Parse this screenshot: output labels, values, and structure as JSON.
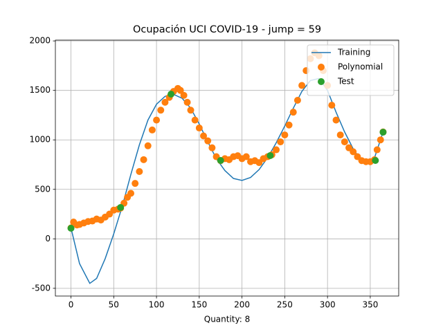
{
  "chart_data": {
    "type": "line_scatter",
    "title": "Ocupación UCI COVID-19 - jump = 59",
    "x_label": "Quantity: 8",
    "xlim": [
      -18.25,
      383.25
    ],
    "ylim": [
      -578,
      2008
    ],
    "xticks": [
      0,
      50,
      100,
      150,
      200,
      250,
      300,
      350
    ],
    "yticks": [
      -500,
      0,
      500,
      1000,
      1500,
      2000
    ],
    "grid": true,
    "legend": "upper right",
    "series": [
      {
        "name": "Training",
        "kind": "line",
        "color": "#1f77b4",
        "x": [
          0,
          10,
          22,
          30,
          40,
          50,
          60,
          70,
          80,
          90,
          100,
          110,
          120,
          130,
          140,
          150,
          160,
          170,
          180,
          190,
          200,
          210,
          220,
          230,
          240,
          250,
          260,
          270,
          280,
          290,
          300,
          310,
          320,
          330,
          340,
          346,
          355,
          360,
          365
        ],
        "values": [
          110,
          -250,
          -450,
          -400,
          -200,
          50,
          330,
          650,
          950,
          1200,
          1360,
          1440,
          1460,
          1420,
          1320,
          1160,
          980,
          810,
          690,
          610,
          590,
          620,
          700,
          820,
          970,
          1140,
          1320,
          1490,
          1600,
          1620,
          1500,
          1280,
          1080,
          910,
          780,
          760,
          820,
          950,
          1080
        ]
      },
      {
        "name": "Polynomial",
        "kind": "points",
        "color": "#ff7f0e",
        "x": [
          0,
          3,
          7,
          10,
          15,
          20,
          25,
          30,
          35,
          40,
          45,
          50,
          55,
          58,
          62,
          66,
          70,
          75,
          80,
          85,
          90,
          95,
          100,
          105,
          110,
          115,
          120,
          125,
          128,
          132,
          136,
          140,
          145,
          150,
          155,
          160,
          165,
          170,
          175,
          180,
          185,
          190,
          195,
          200,
          205,
          210,
          215,
          220,
          225,
          230,
          235,
          240,
          245,
          250,
          255,
          260,
          265,
          270,
          275,
          280,
          285,
          290,
          295,
          300,
          305,
          310,
          315,
          320,
          325,
          330,
          335,
          340,
          345,
          350,
          355,
          358,
          362,
          365
        ],
        "values": [
          110,
          170,
          140,
          145,
          160,
          175,
          180,
          200,
          190,
          220,
          250,
          290,
          300,
          310,
          360,
          420,
          460,
          560,
          680,
          800,
          940,
          1100,
          1200,
          1300,
          1380,
          1430,
          1490,
          1520,
          1500,
          1450,
          1380,
          1300,
          1200,
          1120,
          1040,
          990,
          920,
          830,
          790,
          810,
          800,
          830,
          840,
          810,
          830,
          780,
          790,
          770,
          810,
          830,
          850,
          900,
          980,
          1050,
          1150,
          1280,
          1400,
          1550,
          1700,
          1820,
          1880,
          1850,
          1700,
          1550,
          1350,
          1200,
          1050,
          980,
          920,
          880,
          830,
          790,
          780,
          780,
          800,
          900,
          1000,
          1080
        ]
      },
      {
        "name": "Test",
        "kind": "points",
        "color": "#2ca02c",
        "x": [
          0,
          58,
          117,
          175,
          233,
          356,
          365
        ],
        "values": [
          107,
          317,
          1462,
          792,
          841,
          792,
          1078
        ]
      }
    ]
  }
}
